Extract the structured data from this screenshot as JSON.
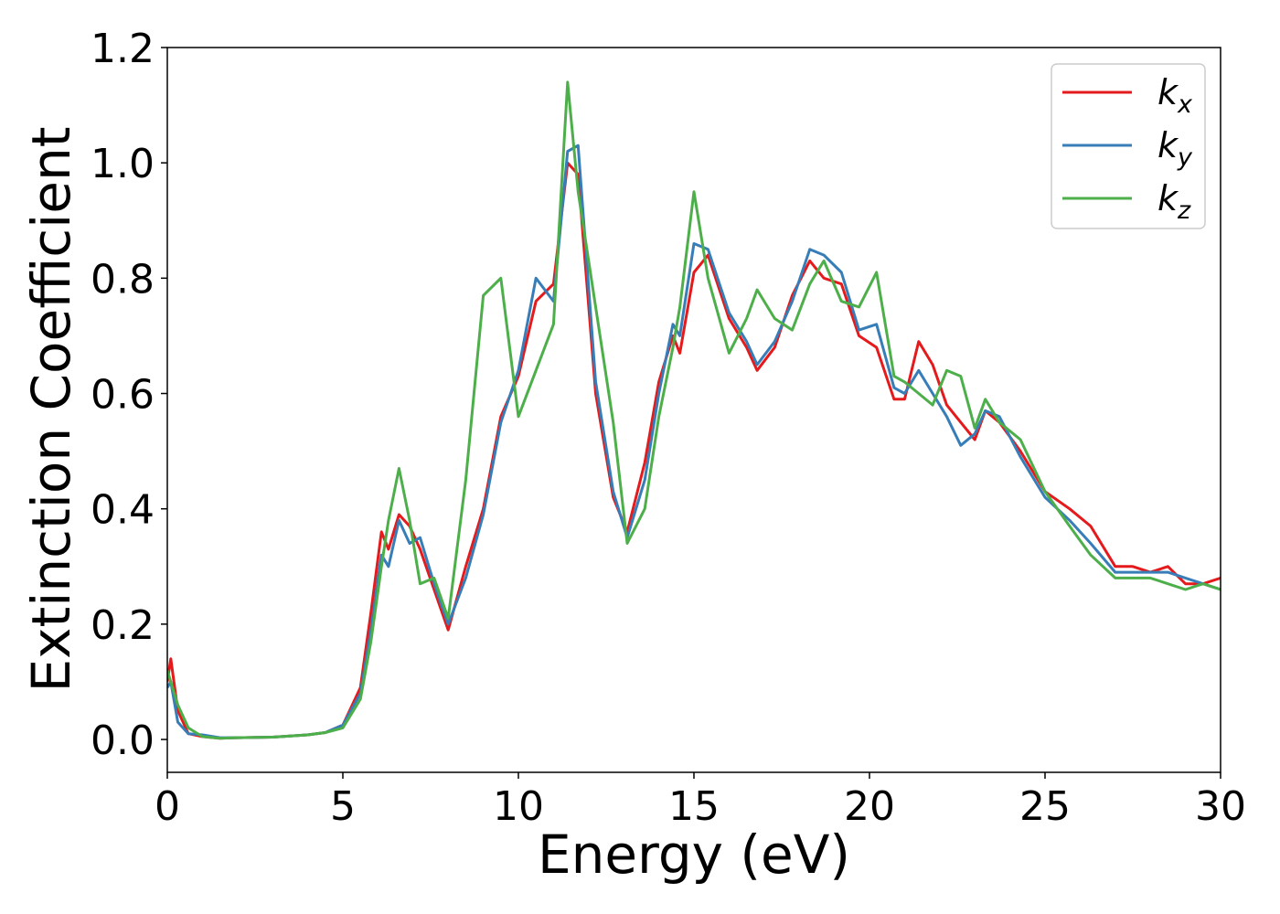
{
  "chart_data": {
    "type": "line",
    "xlabel": "Energy (eV)",
    "ylabel": "Extinction Coefficient",
    "x": [
      0,
      0.1,
      0.3,
      0.6,
      1,
      1.5,
      2,
      3,
      4,
      4.5,
      5,
      5.5,
      5.8,
      6.1,
      6.3,
      6.6,
      6.9,
      7.2,
      7.6,
      8.0,
      8.5,
      9.0,
      9.5,
      10,
      10.5,
      11,
      11.4,
      11.7,
      12.2,
      12.7,
      13.1,
      13.6,
      14.0,
      14.4,
      14.6,
      15.0,
      15.4,
      16.0,
      16.5,
      16.8,
      17.3,
      17.8,
      18.3,
      18.7,
      19.2,
      19.7,
      20.2,
      20.7,
      21.0,
      21.4,
      21.8,
      22.2,
      22.6,
      23.0,
      23.3,
      23.7,
      24.3,
      25.0,
      25.7,
      26.3,
      27.0,
      27.5,
      28.0,
      28.5,
      29.0,
      29.5,
      30
    ],
    "series": [
      {
        "name": "kx",
        "color": "#e41a1c",
        "values": [
          0.1,
          0.14,
          0.05,
          0.01,
          0.005,
          0.002,
          0.003,
          0.004,
          0.008,
          0.012,
          0.025,
          0.09,
          0.22,
          0.36,
          0.33,
          0.39,
          0.37,
          0.33,
          0.26,
          0.19,
          0.3,
          0.4,
          0.56,
          0.63,
          0.76,
          0.79,
          1.0,
          0.98,
          0.6,
          0.42,
          0.36,
          0.48,
          0.62,
          0.7,
          0.67,
          0.81,
          0.84,
          0.73,
          0.68,
          0.64,
          0.68,
          0.77,
          0.83,
          0.8,
          0.79,
          0.7,
          0.68,
          0.59,
          0.59,
          0.69,
          0.65,
          0.58,
          0.55,
          0.52,
          0.57,
          0.55,
          0.5,
          0.43,
          0.4,
          0.37,
          0.3,
          0.3,
          0.29,
          0.3,
          0.27,
          0.27,
          0.28
        ]
      },
      {
        "name": "ky",
        "color": "#377eb8",
        "values": [
          0.09,
          0.1,
          0.03,
          0.01,
          0.008,
          0.003,
          0.003,
          0.004,
          0.008,
          0.012,
          0.025,
          0.08,
          0.19,
          0.32,
          0.3,
          0.38,
          0.34,
          0.35,
          0.27,
          0.2,
          0.28,
          0.39,
          0.55,
          0.64,
          0.8,
          0.76,
          1.02,
          1.03,
          0.62,
          0.43,
          0.35,
          0.45,
          0.6,
          0.72,
          0.7,
          0.86,
          0.85,
          0.74,
          0.69,
          0.65,
          0.69,
          0.76,
          0.85,
          0.84,
          0.81,
          0.71,
          0.72,
          0.61,
          0.6,
          0.64,
          0.6,
          0.56,
          0.51,
          0.53,
          0.57,
          0.56,
          0.49,
          0.42,
          0.38,
          0.34,
          0.29,
          0.29,
          0.29,
          0.29,
          0.28,
          0.27,
          0.26
        ]
      },
      {
        "name": "kz",
        "color": "#4daf4a",
        "values": [
          0.12,
          0.1,
          0.06,
          0.02,
          0.005,
          0.002,
          0.003,
          0.004,
          0.008,
          0.012,
          0.02,
          0.07,
          0.17,
          0.3,
          0.38,
          0.47,
          0.38,
          0.27,
          0.28,
          0.21,
          0.45,
          0.77,
          0.8,
          0.56,
          0.64,
          0.72,
          1.14,
          0.95,
          0.75,
          0.55,
          0.34,
          0.4,
          0.56,
          0.68,
          0.75,
          0.95,
          0.8,
          0.67,
          0.73,
          0.78,
          0.73,
          0.71,
          0.79,
          0.83,
          0.76,
          0.75,
          0.81,
          0.63,
          0.62,
          0.6,
          0.58,
          0.64,
          0.63,
          0.54,
          0.59,
          0.55,
          0.52,
          0.43,
          0.37,
          0.32,
          0.28,
          0.28,
          0.28,
          0.27,
          0.26,
          0.27,
          0.26
        ]
      }
    ],
    "xlim": [
      0,
      30
    ],
    "xticks": [
      0,
      5,
      10,
      15,
      20,
      25,
      30
    ],
    "ylim": [
      -0.057,
      1.2
    ],
    "yticks": [
      {
        "value": 0,
        "label": "0.0"
      },
      {
        "value": 0.2,
        "label": "0.2"
      },
      {
        "value": 0.4,
        "label": "0.4"
      },
      {
        "value": 0.6,
        "label": "0.6"
      },
      {
        "value": 0.8,
        "label": "0.8"
      },
      {
        "value": 1.0,
        "label": "1.0"
      },
      {
        "value": 1.2,
        "label": "1.2"
      }
    ],
    "grid": false,
    "legend": "upper right"
  }
}
